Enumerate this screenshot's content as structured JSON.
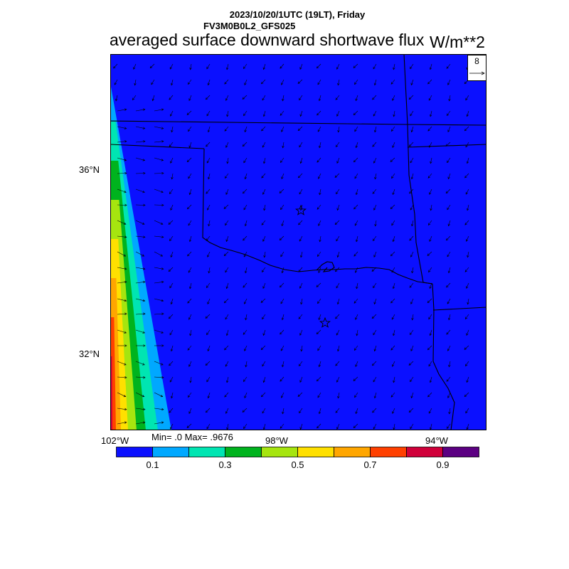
{
  "header": {
    "datetime": "2023/10/20/1UTC (19LT), Friday",
    "model": "FV3M0B0L2_GFS025",
    "title": "averaged surface downward shortwave flux",
    "units": "W/m**2"
  },
  "map": {
    "region": "Oklahoma",
    "field_color": "#0b10ff",
    "lat_labels": [
      "36°N",
      "32°N"
    ],
    "lon_labels": [
      "102°W",
      "98°W",
      "94°W"
    ],
    "stats": "Min= .0 Max= .9676",
    "reference_vector": {
      "label": "8"
    },
    "wind_vector_color": "#000000",
    "city_markers": [
      "star",
      "star"
    ]
  },
  "legend": {
    "colors": [
      "#0b10ff",
      "#00a8ff",
      "#00e5b2",
      "#00b31e",
      "#a6e50f",
      "#ffe000",
      "#ffa600",
      "#ff4000",
      "#d0003a",
      "#5c0082"
    ],
    "tick_labels": [
      "0.1",
      "0.3",
      "0.5",
      "0.7",
      "0.9"
    ]
  }
}
